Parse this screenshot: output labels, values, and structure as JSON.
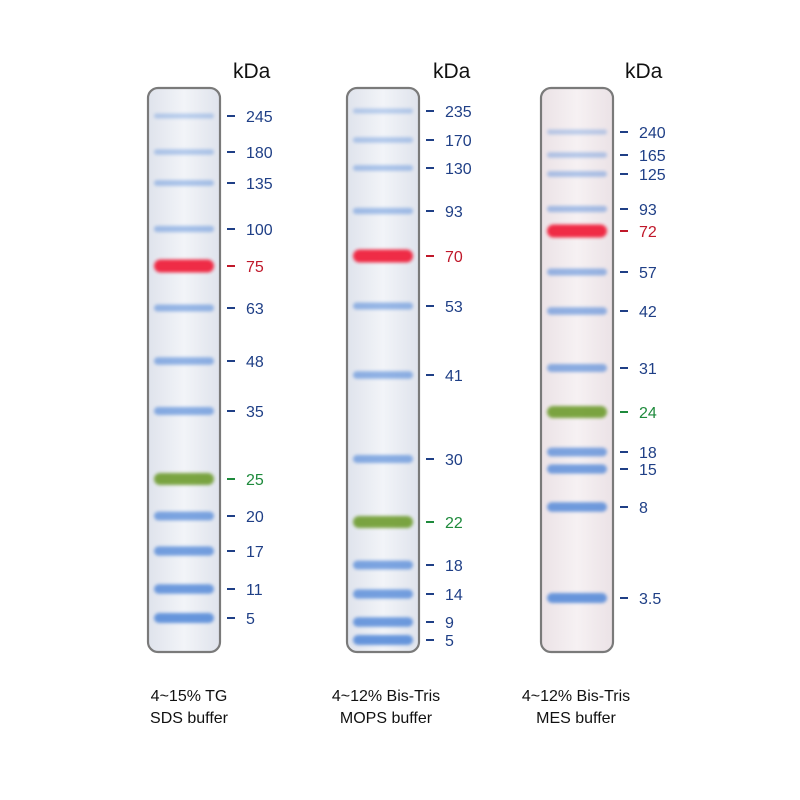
{
  "unit_label": "kDa",
  "colors": {
    "marker_blue": "#1f3f86",
    "marker_red": "#c0182a",
    "marker_green": "#1e8a3c"
  },
  "ladders": [
    {
      "caption_line1": "4~15% TG",
      "caption_line2": "SDS buffer",
      "bands": [
        {
          "mw": "245",
          "color": "blue"
        },
        {
          "mw": "180",
          "color": "blue"
        },
        {
          "mw": "135",
          "color": "blue"
        },
        {
          "mw": "100",
          "color": "blue"
        },
        {
          "mw": "75",
          "color": "red"
        },
        {
          "mw": "63",
          "color": "blue"
        },
        {
          "mw": "48",
          "color": "blue"
        },
        {
          "mw": "35",
          "color": "blue"
        },
        {
          "mw": "25",
          "color": "green"
        },
        {
          "mw": "20",
          "color": "blue"
        },
        {
          "mw": "17",
          "color": "blue"
        },
        {
          "mw": "11",
          "color": "blue"
        },
        {
          "mw": "5",
          "color": "blue"
        }
      ]
    },
    {
      "caption_line1": "4~12% Bis-Tris",
      "caption_line2": "MOPS buffer",
      "bands": [
        {
          "mw": "235",
          "color": "blue"
        },
        {
          "mw": "170",
          "color": "blue"
        },
        {
          "mw": "130",
          "color": "blue"
        },
        {
          "mw": "93",
          "color": "blue"
        },
        {
          "mw": "70",
          "color": "red"
        },
        {
          "mw": "53",
          "color": "blue"
        },
        {
          "mw": "41",
          "color": "blue"
        },
        {
          "mw": "30",
          "color": "blue"
        },
        {
          "mw": "22",
          "color": "green"
        },
        {
          "mw": "18",
          "color": "blue"
        },
        {
          "mw": "14",
          "color": "blue"
        },
        {
          "mw": "9",
          "color": "blue"
        },
        {
          "mw": "5",
          "color": "blue"
        }
      ]
    },
    {
      "caption_line1": "4~12% Bis-Tris",
      "caption_line2": "MES buffer",
      "bands": [
        {
          "mw": "240",
          "color": "blue"
        },
        {
          "mw": "165",
          "color": "blue"
        },
        {
          "mw": "125",
          "color": "blue"
        },
        {
          "mw": "93",
          "color": "blue"
        },
        {
          "mw": "72",
          "color": "red"
        },
        {
          "mw": "57",
          "color": "blue"
        },
        {
          "mw": "42",
          "color": "blue"
        },
        {
          "mw": "31",
          "color": "blue"
        },
        {
          "mw": "24",
          "color": "green"
        },
        {
          "mw": "18",
          "color": "blue"
        },
        {
          "mw": "15",
          "color": "blue"
        },
        {
          "mw": "8",
          "color": "blue"
        },
        {
          "mw": "3.5",
          "color": "blue"
        }
      ]
    }
  ]
}
